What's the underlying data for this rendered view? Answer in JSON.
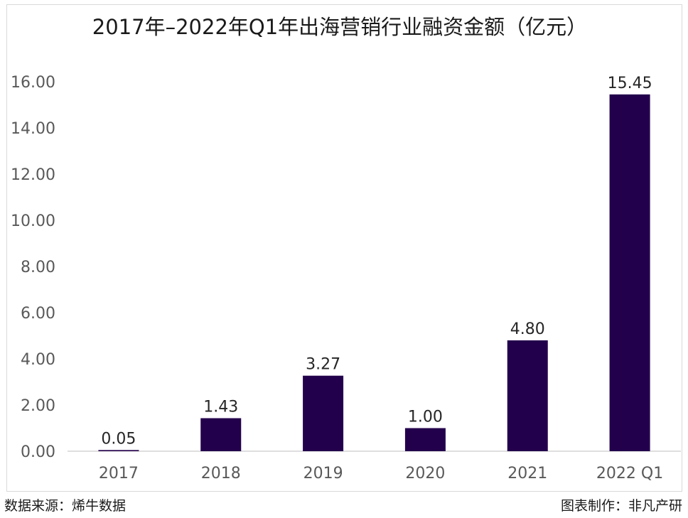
{
  "chart_data": {
    "type": "bar",
    "title": "2017年–2022年Q1年出海营销行业融资金额（亿元）",
    "categories": [
      "2017",
      "2018",
      "2019",
      "2020",
      "2021",
      "2022 Q1"
    ],
    "values": [
      0.05,
      1.43,
      3.27,
      1.0,
      4.8,
      15.45
    ],
    "value_labels": [
      "0.05",
      "1.43",
      "3.27",
      "1.00",
      "4.80",
      "15.45"
    ],
    "ylim": [
      0,
      16
    ],
    "yticks": [
      "0.00",
      "2.00",
      "4.00",
      "6.00",
      "8.00",
      "10.00",
      "12.00",
      "14.00",
      "16.00"
    ],
    "xlabel": "",
    "ylabel": "",
    "grid": false,
    "legend": "none",
    "bar_color": "#23004c"
  },
  "footer": {
    "source": "数据来源：烯牛数据",
    "credit": "图表制作：非凡产研"
  }
}
